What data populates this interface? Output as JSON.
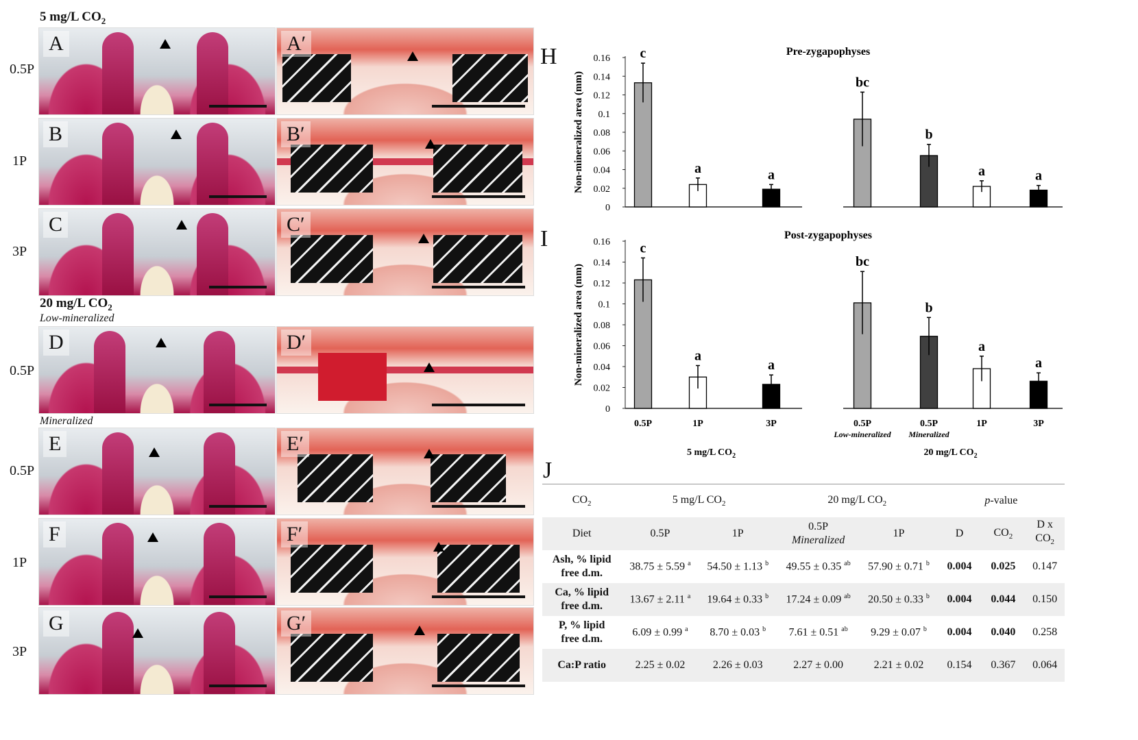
{
  "left": {
    "group1_header": "5 mg/L CO",
    "group1_header_sub": "2",
    "group2_header": "20 mg/L CO",
    "group2_header_sub": "2",
    "low_mineralized_label": "Low-mineralized",
    "mineralized_label": "Mineralized",
    "row_labels": [
      "0.5P",
      "1P",
      "3P",
      "0.5P",
      "0.5P",
      "1P",
      "3P"
    ],
    "wholemount_letters": [
      "A",
      "B",
      "C",
      "D",
      "E",
      "F",
      "G"
    ],
    "histology_letters": [
      "A′",
      "B′",
      "C′",
      "D′",
      "E′",
      "F′",
      "G′"
    ]
  },
  "panel_H_label": "H",
  "panel_I_label": "I",
  "panel_J_label": "J",
  "chart_data": [
    {
      "type": "bar",
      "panel": "H",
      "title": "Pre-zygapophyses",
      "ylabel": "Non-mineralized area (mm)",
      "ylim": [
        0,
        0.16
      ],
      "yticks": [
        "0",
        "0.02",
        "0.04",
        "0.06",
        "0.08",
        "0.1",
        "0.12",
        "0.14",
        "0.16"
      ],
      "categories": [
        "0.5P",
        "1P",
        "3P",
        "0.5P Low-mineralized",
        "0.5P Mineralized",
        "1P",
        "3P"
      ],
      "values": [
        0.133,
        0.024,
        0.019,
        0.094,
        0.055,
        0.022,
        0.018
      ],
      "errors": [
        0.021,
        0.007,
        0.005,
        0.029,
        0.012,
        0.006,
        0.005
      ],
      "letters": [
        "c",
        "a",
        "a",
        "bc",
        "b",
        "a",
        "a"
      ],
      "fills": [
        "#a6a6a6",
        "#ffffff",
        "#000000",
        "#a6a6a6",
        "#404040",
        "#ffffff",
        "#000000"
      ]
    },
    {
      "type": "bar",
      "panel": "I",
      "title": "Post-zygapophyses",
      "ylabel": "Non-mineralized area (mm)",
      "ylim": [
        0,
        0.16
      ],
      "yticks": [
        "0",
        "0.02",
        "0.04",
        "0.06",
        "0.08",
        "0.1",
        "0.12",
        "0.14",
        "0.16"
      ],
      "categories": [
        "0.5P",
        "1P",
        "3P",
        "0.5P Low-mineralized",
        "0.5P Mineralized",
        "1P",
        "3P"
      ],
      "values": [
        0.123,
        0.03,
        0.023,
        0.101,
        0.069,
        0.038,
        0.026
      ],
      "errors": [
        0.021,
        0.011,
        0.009,
        0.03,
        0.018,
        0.012,
        0.008
      ],
      "letters": [
        "c",
        "a",
        "a",
        "bc",
        "b",
        "a",
        "a"
      ],
      "fills": [
        "#a6a6a6",
        "#ffffff",
        "#000000",
        "#a6a6a6",
        "#404040",
        "#ffffff",
        "#000000"
      ],
      "xlabels_top": [
        "0.5P",
        "1P",
        "3P",
        "0.5P",
        "0.5P",
        "1P",
        "3P"
      ],
      "xlabels_bottom": [
        "",
        "",
        "",
        "Low-mineralized",
        "Mineralized",
        "",
        ""
      ],
      "group_labels": [
        "5 mg/L CO",
        "20 mg/L CO"
      ],
      "group_label_sub": "2"
    }
  ],
  "table": {
    "header1": {
      "co2": "CO",
      "co2_sub": "2",
      "g1": "5 mg/L CO",
      "g1_sub": "2",
      "g2": "20 mg/L CO",
      "g2_sub": "2",
      "pval_italic": "p",
      "pval_rest": "-value"
    },
    "header2": {
      "diet": "Diet",
      "c1": "0.5P",
      "c2": "1P",
      "c3_top": "0.5P",
      "c3_bottom": "Mineralized",
      "c4": "1P",
      "d": "D",
      "co2": "CO",
      "co2_sub": "2",
      "dxco2_top": "D x",
      "dxco2_bottom": "CO",
      "dxco2_sub": "2"
    },
    "rows": [
      {
        "label_top": "Ash, % lipid",
        "label_bottom": "free d.m.",
        "v1": "38.75 ± 5.59",
        "s1": "a",
        "v2": "54.50 ± 1.13",
        "s2": "b",
        "v3": "49.55 ± 0.35",
        "s3": "ab",
        "v4": "57.90 ± 0.71",
        "s4": "b",
        "pd": "0.004",
        "pco2": "0.025",
        "pint": "0.147"
      },
      {
        "label_top": "Ca, % lipid",
        "label_bottom": "free d.m.",
        "v1": "13.67 ± 2.11",
        "s1": "a",
        "v2": "19.64 ± 0.33",
        "s2": "b",
        "v3": "17.24 ± 0.09",
        "s3": "ab",
        "v4": "20.50 ± 0.33",
        "s4": "b",
        "pd": "0.004",
        "pco2": "0.044",
        "pint": "0.150"
      },
      {
        "label_top": "P, % lipid",
        "label_bottom": "free d.m.",
        "v1": "6.09 ± 0.99",
        "s1": "a",
        "v2": "8.70 ± 0.03",
        "s2": "b",
        "v3": "7.61 ± 0.51",
        "s3": "ab",
        "v4": "9.29 ± 0.07",
        "s4": "b",
        "pd": "0.004",
        "pco2": "0.040",
        "pint": "0.258"
      },
      {
        "label_top": "Ca:P ratio",
        "label_bottom": "",
        "v1": "2.25 ± 0.02",
        "s1": "",
        "v2": "2.26 ± 0.03",
        "s2": "",
        "v3": "2.27 ± 0.00",
        "s3": "",
        "v4": "2.21 ± 0.02",
        "s4": "",
        "pd": "0.154",
        "pco2": "0.367",
        "pint": "0.064"
      }
    ]
  }
}
